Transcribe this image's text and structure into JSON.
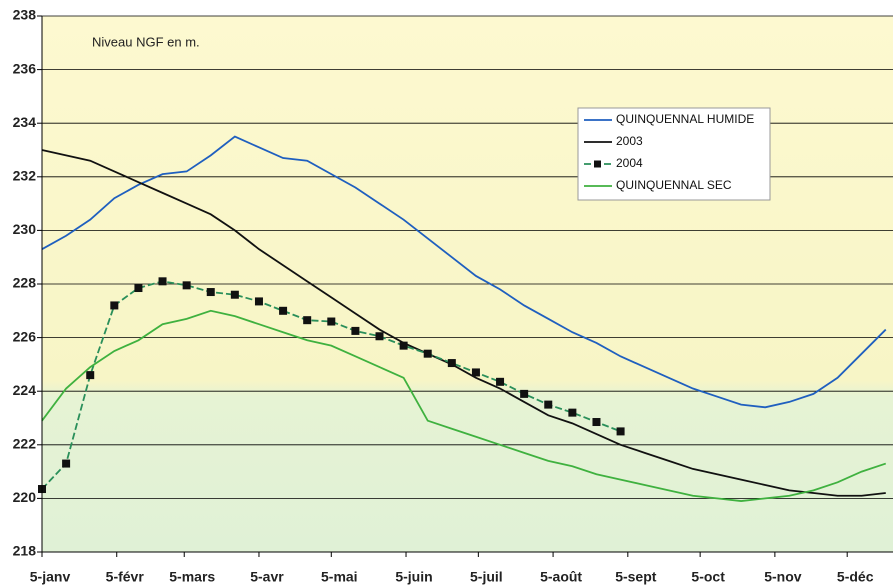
{
  "chart_data": {
    "type": "line",
    "annotation": "Niveau NGF en m.",
    "x": [
      0,
      10,
      20,
      30,
      40,
      50,
      60,
      70,
      80,
      90,
      100,
      110,
      120,
      130,
      140,
      150,
      160,
      170,
      180,
      190,
      200,
      210,
      220,
      230,
      240,
      250,
      260,
      270,
      280,
      290,
      300,
      310,
      320,
      330,
      340,
      350
    ],
    "xlim": [
      0,
      353
    ],
    "xticks": [
      {
        "value": 0,
        "label": "5-janv"
      },
      {
        "value": 31,
        "label": "5-févr"
      },
      {
        "value": 59,
        "label": "5-mars"
      },
      {
        "value": 90,
        "label": "5-avr"
      },
      {
        "value": 120,
        "label": "5-mai"
      },
      {
        "value": 151,
        "label": "5-juin"
      },
      {
        "value": 181,
        "label": "5-juil"
      },
      {
        "value": 212,
        "label": "5-août"
      },
      {
        "value": 243,
        "label": "5-sept"
      },
      {
        "value": 273,
        "label": "5-oct"
      },
      {
        "value": 304,
        "label": "5-nov"
      },
      {
        "value": 334,
        "label": "5-déc"
      }
    ],
    "ylim": [
      218,
      238
    ],
    "yticks": [
      218,
      220,
      222,
      224,
      226,
      228,
      230,
      232,
      234,
      236,
      238
    ],
    "grid": true,
    "legend": "upper right",
    "series": [
      {
        "name": "QUINQUENNAL HUMIDE",
        "color": "#1f5fbf",
        "values": [
          229.3,
          229.8,
          230.4,
          231.2,
          231.7,
          232.1,
          232.2,
          232.8,
          233.5,
          233.1,
          232.7,
          232.6,
          232.1,
          231.6,
          231.0,
          230.4,
          229.7,
          229.0,
          228.3,
          227.8,
          227.2,
          226.7,
          226.2,
          225.8,
          225.3,
          224.9,
          224.5,
          224.1,
          223.8,
          223.5,
          223.4,
          223.6,
          223.9,
          224.5,
          225.4,
          226.3
        ]
      },
      {
        "name": "2003",
        "color": "#111111",
        "values": [
          233.0,
          232.8,
          232.6,
          232.2,
          231.8,
          231.4,
          231.0,
          230.6,
          230.0,
          229.3,
          228.7,
          228.1,
          227.5,
          226.9,
          226.3,
          225.8,
          225.4,
          225.0,
          224.5,
          224.1,
          223.6,
          223.1,
          222.8,
          222.4,
          222.0,
          221.7,
          221.4,
          221.1,
          220.9,
          220.7,
          220.5,
          220.3,
          220.2,
          220.1,
          220.1,
          220.2
        ]
      },
      {
        "name": "2004",
        "color": "#2a8f5a",
        "marker": "square",
        "dashed": true,
        "values": [
          220.35,
          221.3,
          224.6,
          227.2,
          227.85,
          228.1,
          227.95,
          227.7,
          227.6,
          227.35,
          227.0,
          226.65,
          226.6,
          226.25,
          226.05,
          225.7,
          225.4,
          225.05,
          224.7,
          224.35,
          223.9,
          223.5,
          223.2,
          222.85,
          222.5,
          null,
          null,
          null,
          null,
          null,
          null,
          null,
          null,
          null,
          null,
          null
        ]
      },
      {
        "name": "QUINQUENNAL SEC",
        "color": "#3fb13f",
        "values": [
          222.9,
          224.1,
          224.9,
          225.5,
          225.9,
          226.5,
          226.7,
          227.0,
          226.8,
          226.5,
          226.2,
          225.9,
          225.7,
          225.3,
          224.9,
          224.5,
          222.9,
          222.6,
          222.3,
          222.0,
          221.7,
          221.4,
          221.2,
          220.9,
          220.7,
          220.5,
          220.3,
          220.1,
          220.0,
          219.9,
          220.0,
          220.1,
          220.3,
          220.6,
          221.0,
          221.3
        ]
      }
    ]
  }
}
